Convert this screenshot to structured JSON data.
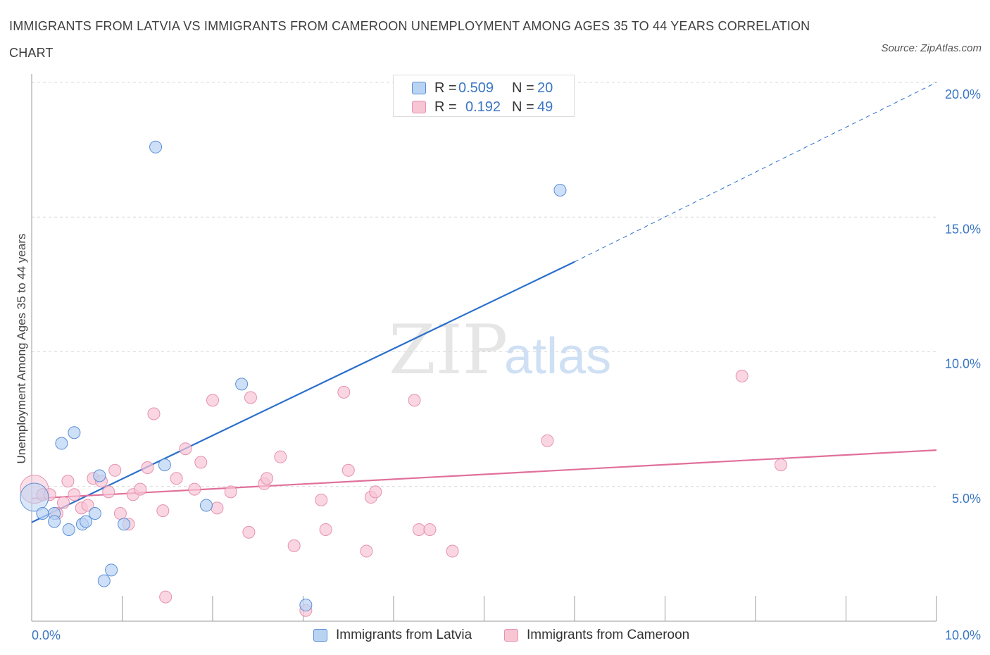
{
  "title": "IMMIGRANTS FROM LATVIA VS IMMIGRANTS FROM CAMEROON UNEMPLOYMENT AMONG AGES 35 TO 44 YEARS CORRELATION CHART",
  "source": "Source: ZipAtlas.com",
  "watermark": {
    "zip": "ZIP",
    "atlas": "atlas"
  },
  "legend_top": [
    {
      "r_label": "R =",
      "r_value": "0.509",
      "n_label": "N =",
      "n_value": "20"
    },
    {
      "r_label": "R =",
      "r_value": "0.192",
      "n_label": "N =",
      "n_value": "49"
    }
  ],
  "colors": {
    "latvia_fill": "#b9d3f3",
    "latvia_stroke": "#5b8fd6",
    "latvia_line": "#2a6fcc",
    "cameroon_fill": "#f8c5d5",
    "cameroon_stroke": "#e592ae",
    "cameroon_line": "#e0709a",
    "tick_label": "#3a76c4",
    "grid": "#d9d9d9"
  },
  "chart_data": {
    "type": "scatter",
    "title": "IMMIGRANTS FROM LATVIA VS IMMIGRANTS FROM CAMEROON UNEMPLOYMENT AMONG AGES 35 TO 44 YEARS CORRELATION CHART",
    "xlabel": "",
    "ylabel": "Unemployment Among Ages 35 to 44 years",
    "xlim": [
      0,
      10
    ],
    "ylim": [
      0,
      20
    ],
    "x_tick_labels": [
      {
        "value": 0,
        "label": "0.0%"
      },
      {
        "value": 10,
        "label": "10.0%"
      }
    ],
    "y_tick_labels": [
      {
        "value": 5,
        "label": "5.0%"
      },
      {
        "value": 10,
        "label": "10.0%"
      },
      {
        "value": 15,
        "label": "15.0%"
      },
      {
        "value": 20,
        "label": "20.0%"
      }
    ],
    "series": [
      {
        "name": "Immigrants from Latvia",
        "R": 0.509,
        "N": 20,
        "points": [
          {
            "x": 0.03,
            "y": 4.6,
            "big": true
          },
          {
            "x": 0.12,
            "y": 4.0
          },
          {
            "x": 0.25,
            "y": 4.0
          },
          {
            "x": 0.25,
            "y": 3.7
          },
          {
            "x": 0.33,
            "y": 6.6
          },
          {
            "x": 0.41,
            "y": 3.4
          },
          {
            "x": 0.47,
            "y": 7.0
          },
          {
            "x": 0.56,
            "y": 3.6
          },
          {
            "x": 0.6,
            "y": 3.7
          },
          {
            "x": 0.7,
            "y": 4.0
          },
          {
            "x": 0.75,
            "y": 5.4
          },
          {
            "x": 0.8,
            "y": 1.5
          },
          {
            "x": 0.88,
            "y": 1.9
          },
          {
            "x": 1.02,
            "y": 3.6
          },
          {
            "x": 1.37,
            "y": 17.6
          },
          {
            "x": 1.47,
            "y": 5.8
          },
          {
            "x": 1.93,
            "y": 4.3
          },
          {
            "x": 2.32,
            "y": 8.8
          },
          {
            "x": 3.03,
            "y": 0.6
          },
          {
            "x": 5.84,
            "y": 16.0
          }
        ],
        "trendline": {
          "x0": 0,
          "y0": 3.67,
          "x1": 6.0,
          "y1": 13.34,
          "dashed_to_x": 10.0,
          "dashed_to_y": 20.0
        }
      },
      {
        "name": "Immigrants from Cameroon",
        "R": 0.192,
        "N": 49,
        "points": [
          {
            "x": 0.03,
            "y": 4.9,
            "big": true
          },
          {
            "x": 0.12,
            "y": 4.7
          },
          {
            "x": 0.2,
            "y": 4.7
          },
          {
            "x": 0.28,
            "y": 4.0
          },
          {
            "x": 0.35,
            "y": 4.4
          },
          {
            "x": 0.4,
            "y": 5.2
          },
          {
            "x": 0.47,
            "y": 4.7
          },
          {
            "x": 0.55,
            "y": 4.2
          },
          {
            "x": 0.62,
            "y": 4.3
          },
          {
            "x": 0.68,
            "y": 5.3
          },
          {
            "x": 0.77,
            "y": 5.2
          },
          {
            "x": 0.85,
            "y": 4.8
          },
          {
            "x": 0.92,
            "y": 5.6
          },
          {
            "x": 0.98,
            "y": 4.0
          },
          {
            "x": 1.07,
            "y": 3.6
          },
          {
            "x": 1.12,
            "y": 4.7
          },
          {
            "x": 1.2,
            "y": 4.9
          },
          {
            "x": 1.28,
            "y": 5.7
          },
          {
            "x": 1.35,
            "y": 7.7
          },
          {
            "x": 1.45,
            "y": 4.1
          },
          {
            "x": 1.48,
            "y": 0.9
          },
          {
            "x": 1.6,
            "y": 5.3
          },
          {
            "x": 1.7,
            "y": 6.4
          },
          {
            "x": 1.8,
            "y": 4.9
          },
          {
            "x": 1.87,
            "y": 5.9
          },
          {
            "x": 2.0,
            "y": 8.2
          },
          {
            "x": 2.05,
            "y": 4.2
          },
          {
            "x": 2.2,
            "y": 4.8
          },
          {
            "x": 2.4,
            "y": 3.3
          },
          {
            "x": 2.42,
            "y": 8.3
          },
          {
            "x": 2.57,
            "y": 5.1
          },
          {
            "x": 2.75,
            "y": 6.1
          },
          {
            "x": 2.9,
            "y": 2.8
          },
          {
            "x": 3.03,
            "y": 0.4
          },
          {
            "x": 3.2,
            "y": 4.5
          },
          {
            "x": 3.25,
            "y": 3.4
          },
          {
            "x": 3.45,
            "y": 8.5
          },
          {
            "x": 3.5,
            "y": 5.6
          },
          {
            "x": 3.7,
            "y": 2.6
          },
          {
            "x": 3.75,
            "y": 4.6
          },
          {
            "x": 3.8,
            "y": 4.8
          },
          {
            "x": 4.23,
            "y": 8.2
          },
          {
            "x": 4.28,
            "y": 3.4
          },
          {
            "x": 4.4,
            "y": 3.4
          },
          {
            "x": 4.65,
            "y": 2.6
          },
          {
            "x": 5.7,
            "y": 6.7
          },
          {
            "x": 7.85,
            "y": 9.1
          },
          {
            "x": 8.28,
            "y": 5.8
          },
          {
            "x": 2.6,
            "y": 5.3
          }
        ],
        "trendline": {
          "x0": 0,
          "y0": 4.55,
          "x1": 10.0,
          "y1": 6.35
        }
      }
    ],
    "legend": [
      "Immigrants from Latvia",
      "Immigrants from Cameroon"
    ],
    "legend_placement": "bottom-center",
    "grid": true
  }
}
